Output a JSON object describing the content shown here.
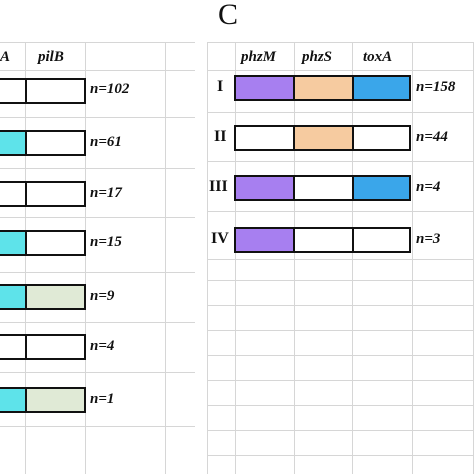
{
  "panel_b_partial": {
    "headers": [
      "A",
      "pilB"
    ],
    "rows": [
      {
        "n": "n=102",
        "cells": [
          "#ffffff",
          "#ffffff"
        ]
      },
      {
        "n": "n=61",
        "cells": [
          "#5ee3ea",
          "#ffffff"
        ]
      },
      {
        "n": "n=17",
        "cells": [
          "#ffffff",
          "#ffffff"
        ]
      },
      {
        "n": "n=15",
        "cells": [
          "#5ee3ea",
          "#ffffff"
        ]
      },
      {
        "n": "n=9",
        "cells": [
          "#5ee3ea",
          "#e0ead6"
        ]
      },
      {
        "n": "n=4",
        "cells": [
          "#ffffff",
          "#ffffff"
        ]
      },
      {
        "n": "n=1",
        "cells": [
          "#5ee3ea",
          "#e0ead6"
        ]
      }
    ]
  },
  "panel_c": {
    "letter": "C",
    "headers": [
      "phzM",
      "phzS",
      "toxA"
    ],
    "rows": [
      {
        "label": "I",
        "n": "n=158",
        "cells": [
          "#a77ff0",
          "#f6cba0",
          "#3aa6ea"
        ]
      },
      {
        "label": "II",
        "n": "n=44",
        "cells": [
          "#ffffff",
          "#f6cba0",
          "#ffffff"
        ]
      },
      {
        "label": "III",
        "n": "n=4",
        "cells": [
          "#a77ff0",
          "#ffffff",
          "#3aa6ea"
        ]
      },
      {
        "label": "IV",
        "n": "n=3",
        "cells": [
          "#a77ff0",
          "#ffffff",
          "#ffffff"
        ]
      }
    ]
  }
}
